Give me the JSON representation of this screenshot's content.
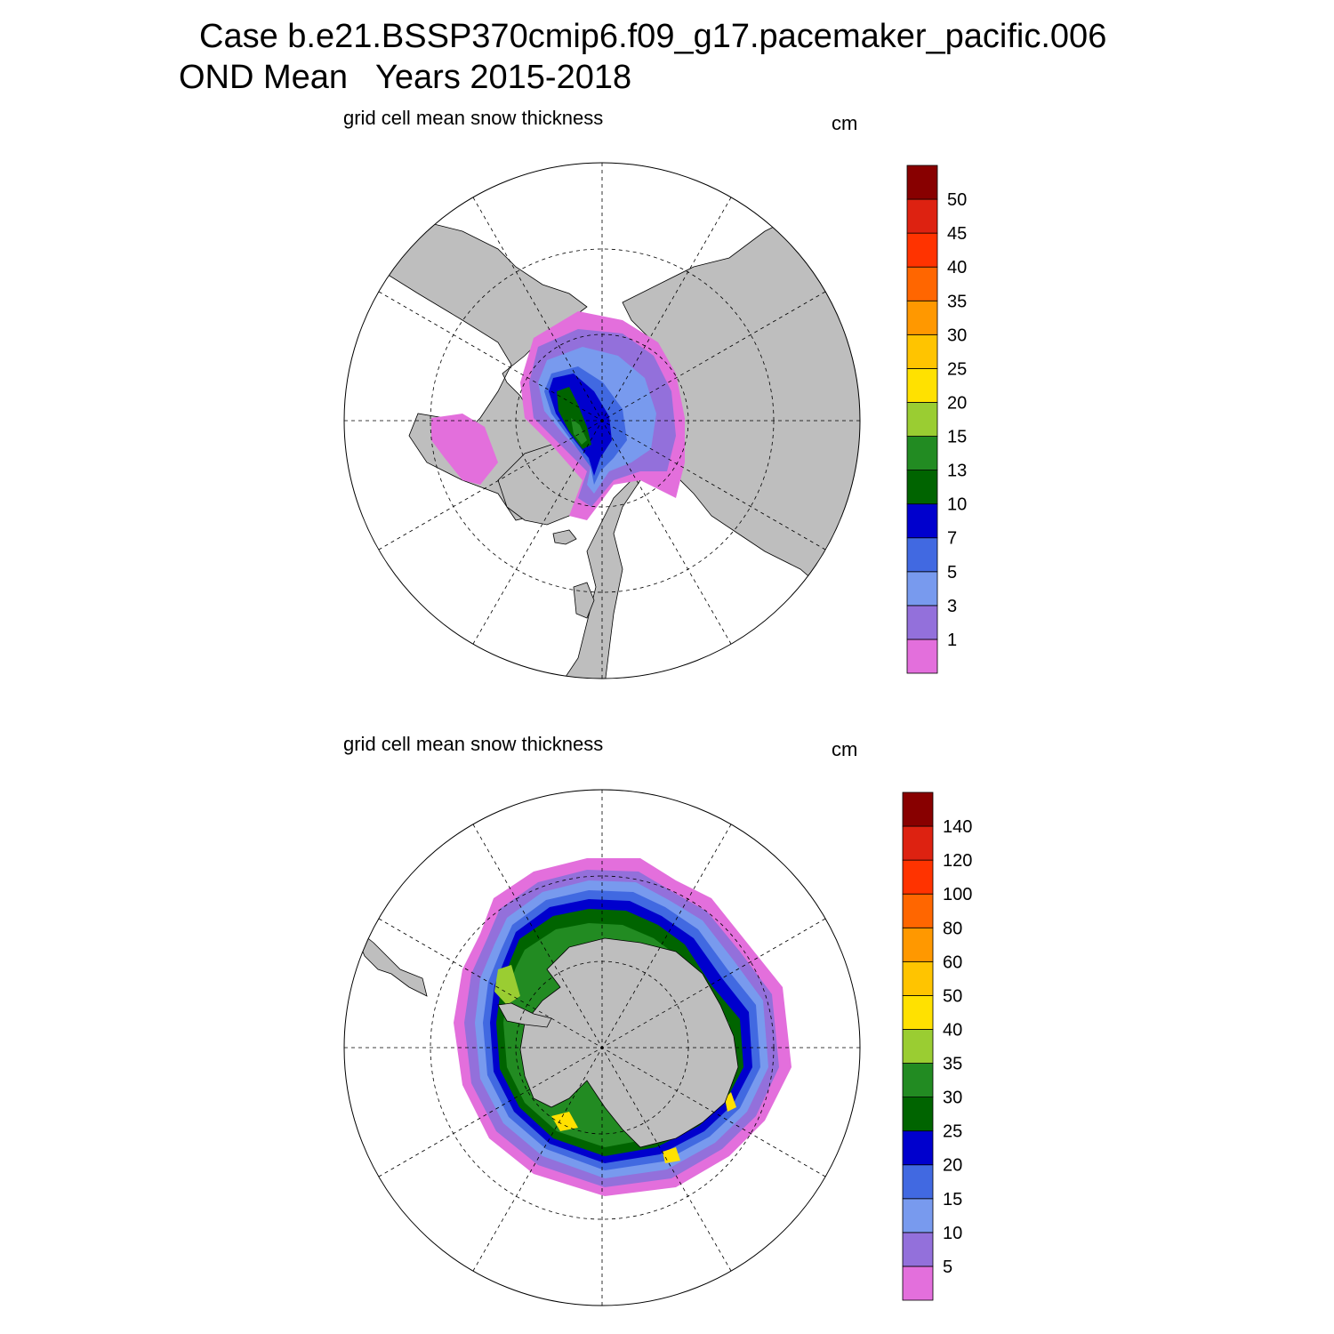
{
  "title": {
    "line1": "Case b.e21.BSSP370cmip6.f09_g17.pacemaker_pacific.006",
    "line2": "OND Mean   Years 2015-2018"
  },
  "panels": [
    {
      "id": "north",
      "hemisphere": "Northern",
      "left_title": "grid cell mean snow thickness",
      "units": "cm",
      "colorbar": {
        "labels": [
          "1",
          "3",
          "5",
          "7",
          "10",
          "13",
          "15",
          "20",
          "25",
          "30",
          "35",
          "40",
          "45",
          "50"
        ],
        "colors": [
          "#e36fdc",
          "#9370db",
          "#789aee",
          "#4169e1",
          "#0000cd",
          "#006400",
          "#228b22",
          "#9acd32",
          "#ffe100",
          "#ffc400",
          "#ff9800",
          "#ff6600",
          "#ff3300",
          "#dd2211",
          "#880000"
        ]
      }
    },
    {
      "id": "south",
      "hemisphere": "Southern",
      "left_title": "grid cell mean snow thickness",
      "units": "cm",
      "colorbar": {
        "labels": [
          "5",
          "10",
          "15",
          "20",
          "25",
          "30",
          "35",
          "40",
          "50",
          "60",
          "80",
          "100",
          "120",
          "140"
        ],
        "colors": [
          "#e36fdc",
          "#9370db",
          "#789aee",
          "#4169e1",
          "#0000cd",
          "#006400",
          "#228b22",
          "#9acd32",
          "#ffe100",
          "#ffc400",
          "#ff9800",
          "#ff6600",
          "#ff3300",
          "#dd2211",
          "#880000"
        ]
      }
    }
  ],
  "colors": {
    "land": "#bebebe",
    "ocean": "#ffffff",
    "grid": "#000000"
  }
}
